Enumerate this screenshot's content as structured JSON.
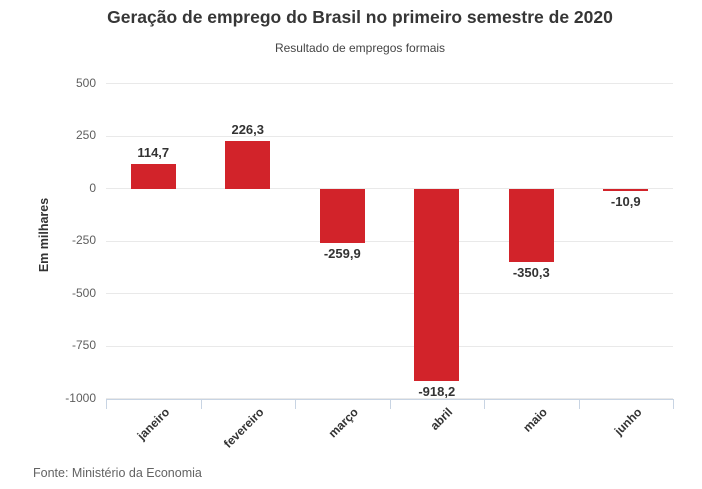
{
  "chart_data": {
    "type": "bar",
    "title": "Geração de emprego do Brasil no primeiro semestre de 2020",
    "subtitle": "Resultado de empregos formais",
    "ylabel": "Em milhares",
    "xlabel": "",
    "categories": [
      "janeiro",
      "fevereiro",
      "março",
      "abril",
      "maio",
      "junho"
    ],
    "values": [
      114.7,
      226.3,
      -259.9,
      -918.2,
      -350.3,
      -10.9
    ],
    "value_labels": [
      "114,7",
      "226,3",
      "-259,9",
      "-918,2",
      "-350,3",
      "-10,9"
    ],
    "yticks": [
      500,
      250,
      0,
      -250,
      -500,
      -750,
      -1000
    ],
    "ylim": [
      -1000,
      555
    ],
    "grid": true,
    "legend": "none",
    "bar_color": "#d2232a",
    "gridline_color": "#e9e9e9",
    "axis_line_color": "#c8d4e3",
    "label_color": "#333333",
    "tick_label_color": "#5e5e5e",
    "source": "Fonte: Ministério da Economia"
  }
}
